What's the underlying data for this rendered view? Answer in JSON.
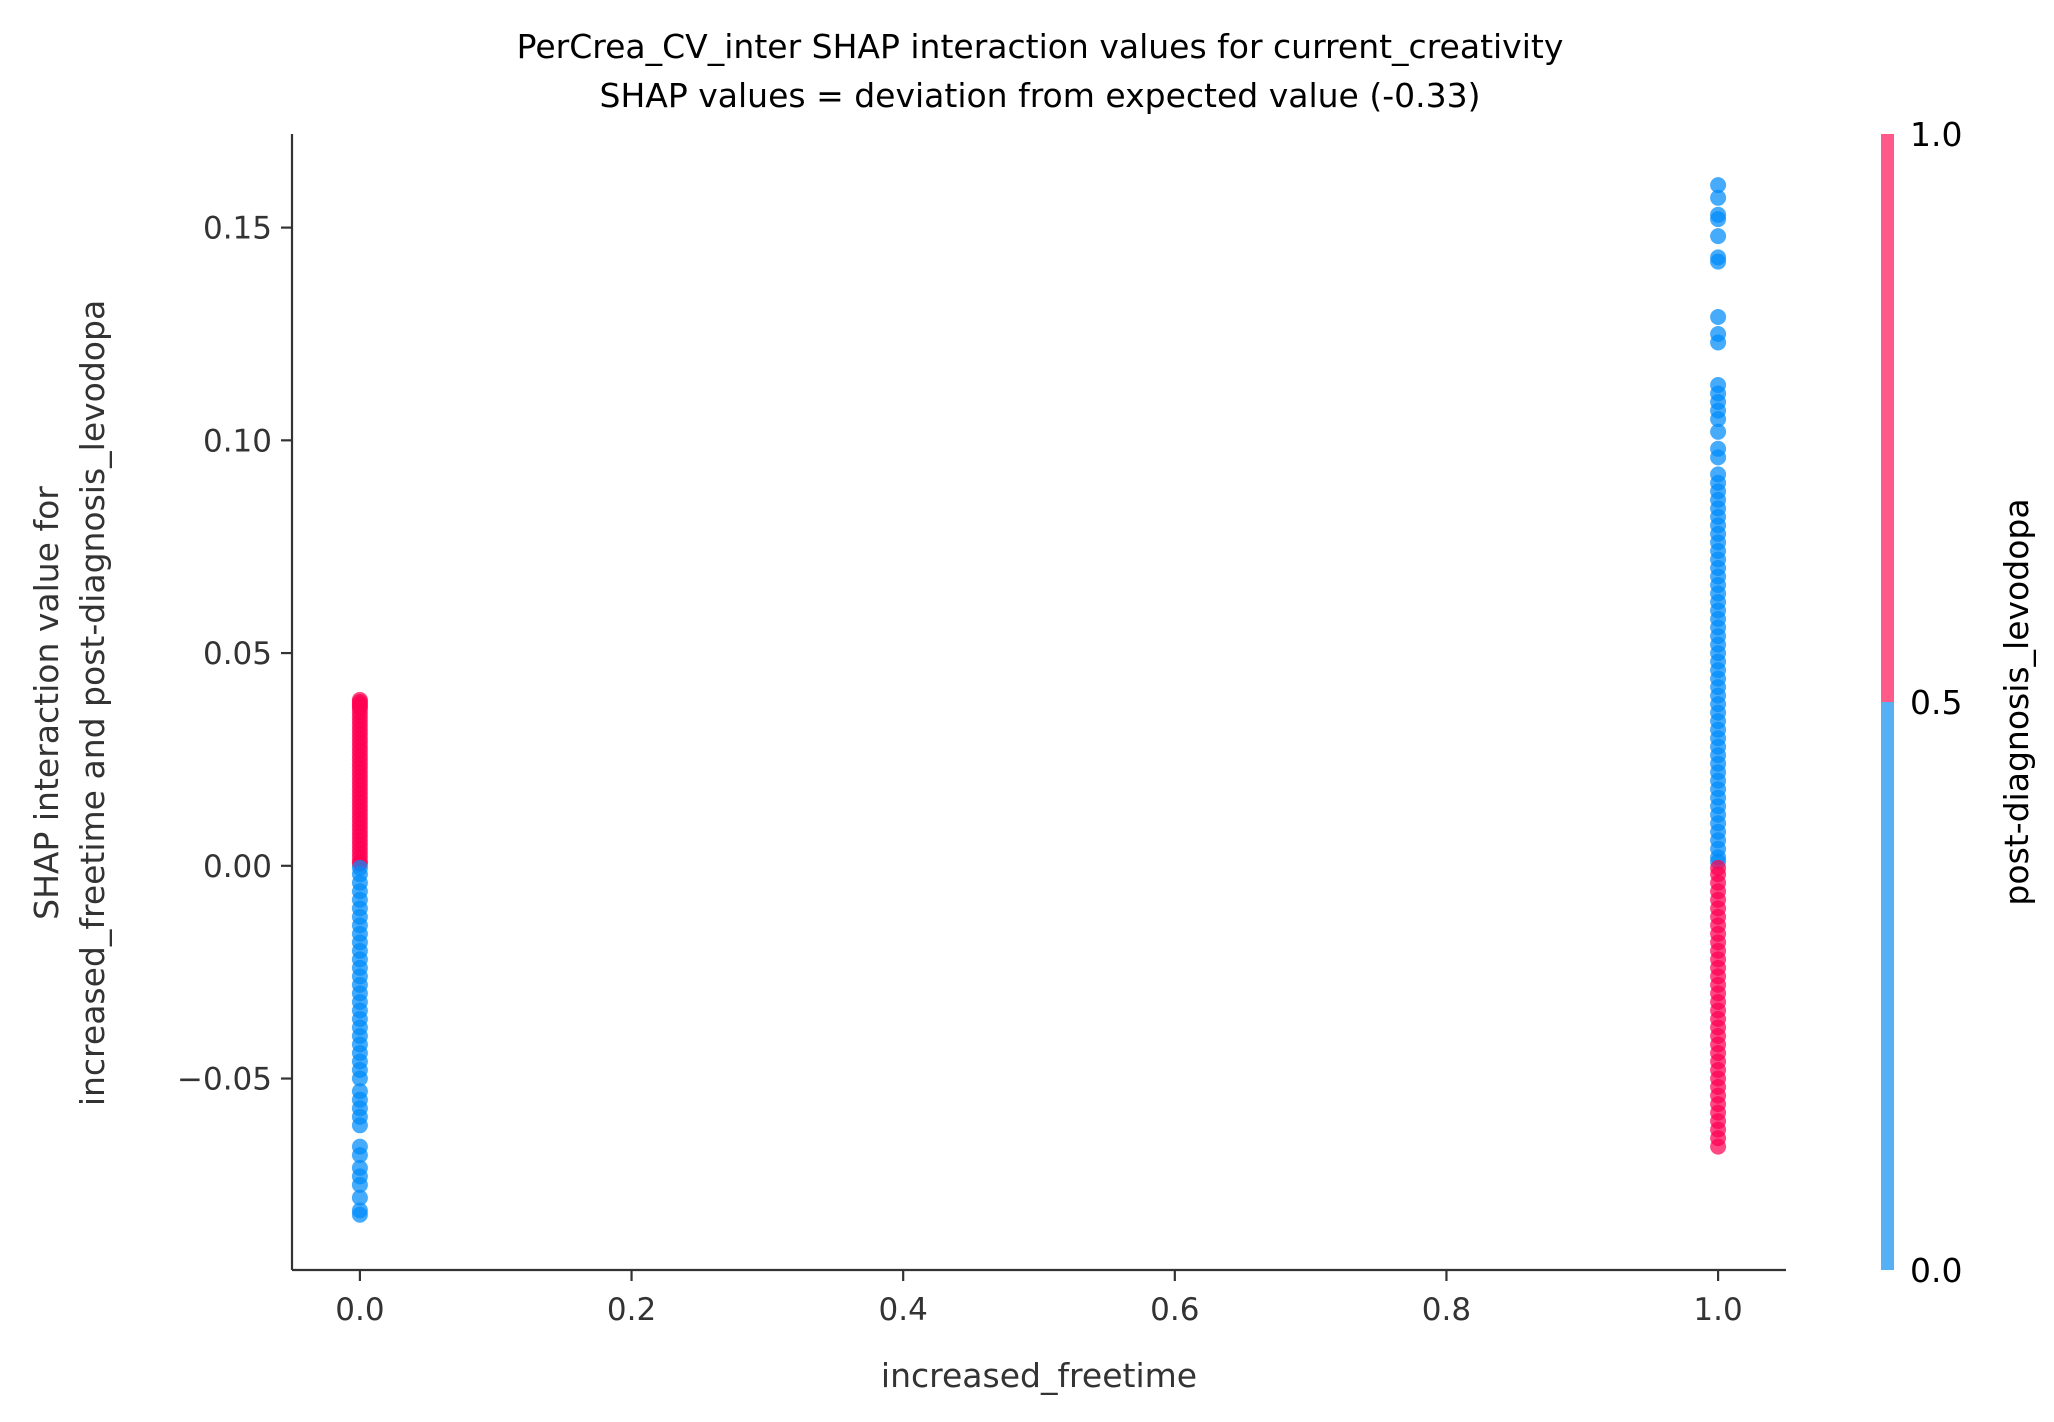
{
  "chart_data": {
    "type": "scatter",
    "title_line1": "PerCrea_CV_inter SHAP interaction values for current_creativity",
    "title_line2": "SHAP values = deviation from expected value (-0.33)",
    "xlabel": "increased_freetime",
    "ylabel_line1": "SHAP interaction value for",
    "ylabel_line2": "increased_freetime and post-diagnosis_levodopa",
    "xlim": [
      -0.05,
      1.05
    ],
    "ylim": [
      -0.095,
      0.172
    ],
    "x_ticks": [
      0.0,
      0.2,
      0.4,
      0.6,
      0.8,
      1.0
    ],
    "x_tick_labels": [
      "0.0",
      "0.2",
      "0.4",
      "0.6",
      "0.8",
      "1.0"
    ],
    "y_ticks": [
      -0.05,
      0.0,
      0.05,
      0.1,
      0.15
    ],
    "y_tick_labels": [
      "−0.05",
      "0.00",
      "0.05",
      "0.10",
      "0.15"
    ],
    "grid": false,
    "legend": "none",
    "colorbar": {
      "label": "post-diagnosis_levodopa",
      "ticks": [
        0.0,
        0.5,
        1.0
      ],
      "tick_labels": [
        "0.0",
        "0.5",
        "1.0"
      ],
      "low_color": "#55b0f5",
      "high_color": "#ff5a8a"
    },
    "point_colors": {
      "value_0": "#008bfb",
      "value_1": "#ff0052"
    },
    "point_groups": [
      {
        "x": 0.0,
        "color_value": 1,
        "y": [
          0.039,
          0.0385,
          0.038,
          0.0375,
          0.037,
          0.036,
          0.035,
          0.034,
          0.033,
          0.032,
          0.031,
          0.03,
          0.029,
          0.028,
          0.027,
          0.026,
          0.025,
          0.024,
          0.023,
          0.022,
          0.021,
          0.02,
          0.019,
          0.018,
          0.017,
          0.016,
          0.015,
          0.014,
          0.013,
          0.012,
          0.011,
          0.01,
          0.009,
          0.008,
          0.007,
          0.006,
          0.005,
          0.004,
          0.003,
          0.002,
          0.001,
          0.0005
        ]
      },
      {
        "x": 0.0,
        "color_value": 0,
        "y": [
          -0.0005,
          -0.002,
          -0.004,
          -0.006,
          -0.008,
          -0.01,
          -0.012,
          -0.014,
          -0.016,
          -0.018,
          -0.02,
          -0.022,
          -0.024,
          -0.026,
          -0.028,
          -0.03,
          -0.032,
          -0.034,
          -0.036,
          -0.038,
          -0.04,
          -0.042,
          -0.044,
          -0.046,
          -0.048,
          -0.05,
          -0.053,
          -0.055,
          -0.057,
          -0.059,
          -0.061,
          -0.066,
          -0.068,
          -0.071,
          -0.073,
          -0.075,
          -0.078,
          -0.081,
          -0.082
        ]
      },
      {
        "x": 1.0,
        "color_value": 0,
        "y": [
          0.16,
          0.157,
          0.153,
          0.152,
          0.148,
          0.143,
          0.142,
          0.129,
          0.125,
          0.123,
          0.113,
          0.111,
          0.109,
          0.107,
          0.105,
          0.102,
          0.098,
          0.096,
          0.092,
          0.09,
          0.088,
          0.086,
          0.084,
          0.082,
          0.08,
          0.078,
          0.076,
          0.074,
          0.072,
          0.07,
          0.068,
          0.066,
          0.064,
          0.062,
          0.06,
          0.058,
          0.056,
          0.054,
          0.052,
          0.05,
          0.048,
          0.046,
          0.044,
          0.042,
          0.04,
          0.038,
          0.036,
          0.034,
          0.032,
          0.03,
          0.028,
          0.026,
          0.024,
          0.022,
          0.02,
          0.018,
          0.016,
          0.014,
          0.012,
          0.01,
          0.008,
          0.006,
          0.004,
          0.002,
          0.001
        ]
      },
      {
        "x": 1.0,
        "color_value": 1,
        "y": [
          -0.0005,
          -0.002,
          -0.004,
          -0.006,
          -0.008,
          -0.01,
          -0.012,
          -0.014,
          -0.016,
          -0.018,
          -0.02,
          -0.022,
          -0.024,
          -0.026,
          -0.028,
          -0.03,
          -0.032,
          -0.034,
          -0.036,
          -0.038,
          -0.04,
          -0.042,
          -0.044,
          -0.046,
          -0.048,
          -0.05,
          -0.052,
          -0.054,
          -0.056,
          -0.058,
          -0.06,
          -0.062,
          -0.064,
          -0.066
        ]
      }
    ]
  }
}
